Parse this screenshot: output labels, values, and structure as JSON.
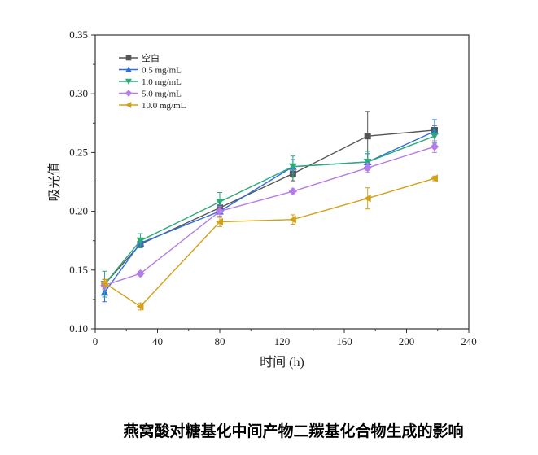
{
  "chart_data": {
    "type": "line",
    "xlabel": "时间 (h)",
    "ylabel": "吸光值",
    "xlim": [
      0,
      240
    ],
    "ylim": [
      0.1,
      0.35
    ],
    "xticks": [
      0,
      40,
      80,
      120,
      160,
      200,
      240
    ],
    "yticks": [
      0.1,
      0.15,
      0.2,
      0.25,
      0.3,
      0.35
    ],
    "ytick_labels": [
      "0.10",
      "0.15",
      "0.20",
      "0.25",
      "0.30",
      "0.35"
    ],
    "x": [
      6,
      29,
      80,
      127,
      175,
      218
    ],
    "legend_position": "top-left",
    "series": [
      {
        "name": "空白",
        "color": "#555555",
        "marker": "square",
        "values": [
          0.138,
          0.172,
          0.203,
          0.232,
          0.264,
          0.269
        ],
        "err": [
          0.004,
          0.003,
          0.004,
          0.006,
          0.021,
          0.004
        ]
      },
      {
        "name": "0.5 mg/mL",
        "color": "#2f6fd8",
        "marker": "triangle-up",
        "values": [
          0.131,
          0.173,
          0.2,
          0.238,
          0.242,
          0.268
        ],
        "err": [
          0.008,
          0.004,
          0.005,
          0.006,
          0.007,
          0.01
        ]
      },
      {
        "name": "1.0 mg/mL",
        "color": "#2daa7a",
        "marker": "triangle-down",
        "values": [
          0.138,
          0.175,
          0.208,
          0.238,
          0.242,
          0.264
        ],
        "err": [
          0.011,
          0.006,
          0.008,
          0.009,
          0.009,
          0.006
        ]
      },
      {
        "name": "5.0 mg/mL",
        "color": "#b57be8",
        "marker": "diamond",
        "values": [
          0.137,
          0.147,
          0.2,
          0.217,
          0.237,
          0.255
        ],
        "err": [
          0.003,
          0.002,
          0.004,
          0.002,
          0.004,
          0.005
        ]
      },
      {
        "name": "10.0 mg/mL",
        "color": "#d4a017",
        "marker": "triangle-left",
        "values": [
          0.139,
          0.119,
          0.191,
          0.193,
          0.211,
          0.228
        ],
        "err": [
          0.003,
          0.003,
          0.004,
          0.004,
          0.009,
          0.002
        ]
      }
    ]
  },
  "caption": "燕窝酸对糖基化中间产物二羰基化合物生成的影响"
}
